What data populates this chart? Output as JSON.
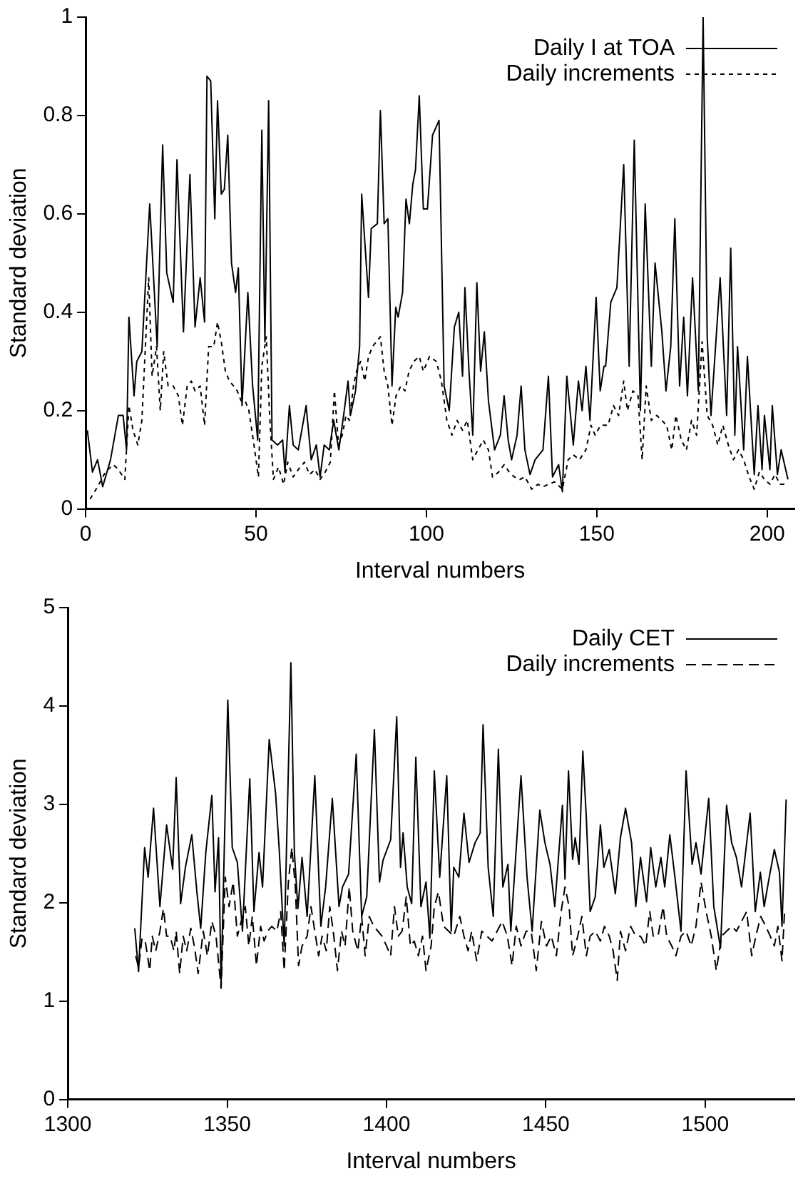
{
  "chart_data": [
    {
      "type": "line",
      "xlabel": "Interval numbers",
      "ylabel": "Standard deviation",
      "xlim": [
        0,
        208
      ],
      "xticks": [
        0,
        50,
        100,
        150,
        200
      ],
      "ylim": [
        0,
        1
      ],
      "yticks": [
        0,
        0.2,
        0.4,
        0.6,
        0.8,
        1
      ],
      "legend": "top right",
      "marker": "none",
      "series": [
        {
          "name": "Daily I at TOA",
          "color": "#000000",
          "line_style": "solid",
          "x": [
            0.5,
            2,
            3.5,
            5,
            7.3,
            9.6,
            11,
            12,
            12.7,
            14.2,
            15,
            16.5,
            18.8,
            21,
            22.6,
            23.8,
            25.7,
            26.8,
            28.7,
            30.6,
            32.1,
            33.6,
            34.9,
            35.6,
            36.7,
            37.9,
            38.7,
            39.8,
            40.7,
            41.7,
            42.8,
            44,
            44.8,
            45.9,
            47.6,
            49,
            50.5,
            51.7,
            52.6,
            53.7,
            54.7,
            56.3,
            57.8,
            58.5,
            59.8,
            60.9,
            62.4,
            64.7,
            66.2,
            67.7,
            68.8,
            70,
            71.5,
            72.8,
            74.3,
            75.7,
            77,
            77.7,
            79.2,
            80.4,
            81,
            83,
            83.8,
            85.6,
            86.5,
            87.6,
            88.7,
            89.9,
            91,
            91.7,
            93,
            94,
            95,
            96,
            96.8,
            97.9,
            99.1,
            100.3,
            101.8,
            103.7,
            105.2,
            106.7,
            108.2,
            109.5,
            110.6,
            111.3,
            112.5,
            113.6,
            114.8,
            115.9,
            117,
            118.2,
            120,
            121.7,
            122.8,
            124,
            125,
            126.6,
            127.8,
            128.9,
            130.4,
            131.9,
            134.2,
            135.8,
            137,
            138.8,
            139.9,
            141.2,
            143.1,
            144.6,
            145.7,
            146.8,
            148,
            149.8,
            151,
            152.1,
            152.6,
            154.1,
            155.9,
            157.9,
            159.5,
            161,
            162.8,
            164.2,
            166,
            167.1,
            169.1,
            170.3,
            171.7,
            172.9,
            174.3,
            175.5,
            176.6,
            178.1,
            179.8,
            181.2,
            182.4,
            183.5,
            186.2,
            188.1,
            189.3,
            190.5,
            191.3,
            193.1,
            194.2,
            196.2,
            197.3,
            198.5,
            199.2,
            200.8,
            201.5,
            203,
            204.1,
            206.1
          ],
          "values": [
            0.16,
            0.075,
            0.1,
            0.045,
            0.1,
            0.19,
            0.19,
            0.12,
            0.39,
            0.23,
            0.3,
            0.32,
            0.62,
            0.33,
            0.74,
            0.48,
            0.42,
            0.71,
            0.36,
            0.68,
            0.37,
            0.47,
            0.38,
            0.88,
            0.87,
            0.59,
            0.83,
            0.64,
            0.65,
            0.76,
            0.5,
            0.44,
            0.49,
            0.21,
            0.44,
            0.25,
            0.14,
            0.77,
            0.34,
            0.83,
            0.14,
            0.13,
            0.14,
            0.075,
            0.21,
            0.13,
            0.12,
            0.21,
            0.1,
            0.13,
            0.065,
            0.13,
            0.12,
            0.18,
            0.12,
            0.19,
            0.26,
            0.19,
            0.24,
            0.33,
            0.64,
            0.43,
            0.57,
            0.58,
            0.81,
            0.58,
            0.59,
            0.25,
            0.41,
            0.39,
            0.44,
            0.63,
            0.58,
            0.66,
            0.69,
            0.84,
            0.61,
            0.61,
            0.76,
            0.79,
            0.25,
            0.2,
            0.37,
            0.4,
            0.27,
            0.45,
            0.28,
            0.15,
            0.46,
            0.28,
            0.36,
            0.22,
            0.12,
            0.15,
            0.23,
            0.14,
            0.1,
            0.15,
            0.25,
            0.12,
            0.07,
            0.1,
            0.12,
            0.27,
            0.065,
            0.09,
            0.035,
            0.27,
            0.13,
            0.26,
            0.2,
            0.29,
            0.18,
            0.43,
            0.24,
            0.29,
            0.29,
            0.42,
            0.45,
            0.7,
            0.29,
            0.75,
            0.2,
            0.62,
            0.29,
            0.5,
            0.36,
            0.24,
            0.33,
            0.59,
            0.25,
            0.39,
            0.23,
            0.47,
            0.24,
            1.0,
            0.35,
            0.19,
            0.47,
            0.19,
            0.53,
            0.15,
            0.33,
            0.12,
            0.31,
            0.07,
            0.21,
            0.08,
            0.19,
            0.08,
            0.21,
            0.07,
            0.12,
            0.06
          ]
        },
        {
          "name": "Daily increments",
          "color": "#000000",
          "line_style": "dotted",
          "x": [
            1.3,
            3.5,
            5.8,
            8.1,
            9.6,
            11.5,
            12.7,
            13.9,
            15.3,
            16.5,
            18.5,
            19.5,
            20.8,
            21.9,
            22.9,
            24.2,
            25.7,
            27.2,
            28.4,
            29.8,
            31,
            32.1,
            33.6,
            34.9,
            36.1,
            37.6,
            38.7,
            39.8,
            41,
            42.2,
            43.4,
            44.5,
            45.6,
            46.8,
            47.9,
            49.4,
            50.7,
            51.7,
            53,
            54,
            55.1,
            56.6,
            58.1,
            59.3,
            60.9,
            62.4,
            64.2,
            65.7,
            67.3,
            68.8,
            70.3,
            71.8,
            73,
            74.2,
            75.3,
            76.4,
            77.4,
            78.6,
            79.5,
            80.7,
            81.9,
            83,
            84.2,
            85.3,
            86.5,
            87.6,
            88.7,
            89.9,
            91.1,
            92.5,
            93.7,
            94.9,
            96.3,
            97.9,
            99.1,
            100.9,
            102.9,
            104.4,
            106,
            107.5,
            109,
            110.6,
            112,
            113.6,
            115.1,
            116.7,
            118.2,
            119.4,
            121.2,
            122.8,
            124.3,
            125.8,
            127.4,
            128.9,
            130.9,
            132.7,
            134.2,
            135.8,
            137.6,
            139.9,
            141.6,
            143.1,
            144.9,
            146.8,
            148.3,
            149.5,
            151.1,
            152.3,
            153.3,
            154.9,
            156.4,
            157.9,
            159,
            160.6,
            162.1,
            163.3,
            164.5,
            166,
            167.6,
            169.1,
            170.5,
            172,
            173.2,
            174.8,
            176.3,
            177.8,
            179.3,
            180.9,
            182.4,
            184,
            185.5,
            187,
            188.6,
            190.1,
            191.6,
            193.1,
            194.7,
            196.2,
            197.7,
            199.2,
            200.8,
            202.3,
            203.8,
            206.1
          ],
          "values": [
            0.02,
            0.045,
            0.075,
            0.09,
            0.08,
            0.06,
            0.21,
            0.16,
            0.13,
            0.18,
            0.47,
            0.27,
            0.33,
            0.2,
            0.32,
            0.25,
            0.25,
            0.23,
            0.17,
            0.25,
            0.26,
            0.24,
            0.25,
            0.17,
            0.33,
            0.33,
            0.38,
            0.34,
            0.28,
            0.26,
            0.25,
            0.24,
            0.22,
            0.22,
            0.2,
            0.13,
            0.065,
            0.29,
            0.35,
            0.19,
            0.06,
            0.085,
            0.05,
            0.095,
            0.065,
            0.08,
            0.095,
            0.07,
            0.08,
            0.06,
            0.075,
            0.095,
            0.24,
            0.13,
            0.15,
            0.19,
            0.18,
            0.25,
            0.28,
            0.3,
            0.26,
            0.31,
            0.33,
            0.34,
            0.35,
            0.28,
            0.25,
            0.17,
            0.23,
            0.25,
            0.24,
            0.28,
            0.3,
            0.31,
            0.28,
            0.31,
            0.3,
            0.26,
            0.18,
            0.15,
            0.18,
            0.16,
            0.18,
            0.1,
            0.12,
            0.14,
            0.12,
            0.065,
            0.075,
            0.09,
            0.075,
            0.065,
            0.06,
            0.065,
            0.04,
            0.05,
            0.045,
            0.05,
            0.055,
            0.04,
            0.1,
            0.11,
            0.1,
            0.12,
            0.17,
            0.15,
            0.17,
            0.17,
            0.17,
            0.21,
            0.19,
            0.26,
            0.2,
            0.24,
            0.23,
            0.1,
            0.25,
            0.18,
            0.19,
            0.18,
            0.17,
            0.12,
            0.19,
            0.14,
            0.12,
            0.18,
            0.15,
            0.34,
            0.19,
            0.17,
            0.13,
            0.17,
            0.13,
            0.1,
            0.12,
            0.1,
            0.065,
            0.04,
            0.075,
            0.06,
            0.05,
            0.07,
            0.05,
            0.05
          ]
        }
      ]
    },
    {
      "type": "line",
      "xlabel": "Interval numbers",
      "ylabel": "Standard deviation",
      "xlim": [
        1300,
        1528
      ],
      "xticks": [
        1300,
        1350,
        1400,
        1450,
        1500
      ],
      "ylim": [
        0,
        5
      ],
      "yticks": [
        0,
        1,
        2,
        3,
        4,
        5
      ],
      "legend": "top right",
      "marker": "none",
      "series": [
        {
          "name": "Daily CET",
          "color": "#000000",
          "line_style": "solid",
          "x": [
            1321,
            1322.2,
            1324.1,
            1325.2,
            1326.9,
            1328.9,
            1331,
            1332.9,
            1334,
            1335.4,
            1336.9,
            1338.9,
            1340.5,
            1341.7,
            1343.3,
            1345.2,
            1346.2,
            1347.3,
            1348.1,
            1350.2,
            1351.6,
            1353.2,
            1354.8,
            1357.1,
            1358.4,
            1360,
            1361.1,
            1363.2,
            1365.2,
            1366.3,
            1367.9,
            1370,
            1371.1,
            1372.2,
            1373.5,
            1375.1,
            1377.5,
            1379.4,
            1380.9,
            1383,
            1385.1,
            1386.2,
            1388.1,
            1390.5,
            1392.2,
            1393.8,
            1396.2,
            1397.8,
            1398.9,
            1401.3,
            1403.2,
            1404.4,
            1405.2,
            1406.5,
            1407.9,
            1409.2,
            1410.8,
            1412.4,
            1413.6,
            1415,
            1416.7,
            1418.9,
            1420.3,
            1421.1,
            1422.7,
            1424.3,
            1425.9,
            1427.8,
            1429.4,
            1430.3,
            1431.9,
            1433.5,
            1435.1,
            1436.5,
            1438.1,
            1439,
            1442.2,
            1444.1,
            1445.7,
            1448.1,
            1449.7,
            1451.3,
            1452.8,
            1455.2,
            1456,
            1457.1,
            1458.4,
            1459.2,
            1460.4,
            1461.6,
            1462.7,
            1463.9,
            1465.5,
            1467.1,
            1468.2,
            1469.9,
            1471.8,
            1473.4,
            1475,
            1476.9,
            1478.2,
            1479.7,
            1481.6,
            1482.9,
            1484.5,
            1486.1,
            1487.3,
            1488.9,
            1490.5,
            1492.4,
            1494,
            1495.9,
            1497.1,
            1498.7,
            1501.1,
            1502.7,
            1504.8,
            1506.7,
            1508.3,
            1509.8,
            1511.4,
            1514.1,
            1515.7,
            1517.3,
            1518.5,
            1520.1,
            1521.7,
            1523.3,
            1524.1,
            1525.4
          ],
          "values": [
            1.74,
            1.3,
            2.56,
            2.26,
            2.96,
            1.96,
            2.79,
            2.34,
            3.27,
            1.99,
            2.36,
            2.69,
            2.11,
            1.74,
            2.51,
            3.09,
            2.11,
            2.66,
            1.16,
            4.06,
            2.56,
            2.41,
            1.71,
            3.26,
            1.91,
            2.51,
            2.16,
            3.66,
            3.11,
            2.56,
            1.56,
            4.44,
            2.51,
            1.94,
            2.46,
            1.86,
            3.29,
            1.76,
            2.16,
            3.06,
            1.96,
            2.16,
            2.29,
            3.51,
            1.86,
            2.06,
            3.76,
            2.21,
            2.43,
            2.64,
            3.89,
            2.36,
            2.71,
            2.16,
            1.99,
            3.48,
            1.96,
            2.21,
            1.64,
            3.34,
            2.26,
            3.29,
            1.71,
            2.36,
            2.26,
            2.91,
            2.41,
            2.61,
            2.71,
            3.81,
            2.36,
            1.86,
            3.56,
            2.16,
            2.39,
            1.71,
            3.29,
            2.26,
            1.71,
            2.94,
            2.61,
            2.39,
            1.96,
            2.99,
            2.24,
            3.34,
            2.44,
            2.66,
            2.39,
            3.54,
            2.86,
            1.91,
            2.06,
            2.79,
            2.36,
            2.54,
            2.09,
            2.66,
            2.96,
            2.61,
            1.96,
            2.46,
            2.01,
            2.56,
            2.16,
            2.46,
            2.16,
            2.69,
            2.26,
            1.71,
            3.34,
            2.39,
            2.61,
            2.29,
            3.06,
            1.96,
            1.54,
            2.99,
            2.61,
            2.46,
            2.16,
            2.91,
            1.91,
            2.31,
            1.96,
            2.26,
            2.54,
            2.31,
            1.76,
            3.05
          ]
        },
        {
          "name": "Daily increments",
          "color": "#000000",
          "line_style": "dashed",
          "x": [
            1321.3,
            1322.2,
            1323.3,
            1324.4,
            1325.7,
            1326.5,
            1327.6,
            1328.9,
            1330,
            1331,
            1332.1,
            1333.3,
            1334,
            1335.1,
            1336.2,
            1337.3,
            1338.6,
            1339.8,
            1340.9,
            1342.5,
            1343.8,
            1345.2,
            1346.5,
            1348.1,
            1349.4,
            1350.6,
            1351.9,
            1353.2,
            1354.4,
            1355.7,
            1356.8,
            1357.9,
            1359.2,
            1360.5,
            1361.6,
            1362.7,
            1364,
            1365.6,
            1366.8,
            1367.9,
            1369.2,
            1370.3,
            1371.4,
            1372.4,
            1373.5,
            1375.1,
            1376.3,
            1377.5,
            1378.7,
            1379.8,
            1381.1,
            1382.2,
            1383.3,
            1384.6,
            1385.9,
            1387,
            1388.3,
            1389.4,
            1391,
            1392.2,
            1393.3,
            1394.6,
            1396,
            1397.3,
            1398.6,
            1400,
            1401.3,
            1402.5,
            1403.7,
            1404.9,
            1406.2,
            1407.5,
            1408.7,
            1410,
            1411.3,
            1412.4,
            1414,
            1415,
            1416.3,
            1417.9,
            1419.5,
            1421.1,
            1423,
            1424.3,
            1425.6,
            1426.7,
            1428.3,
            1429.9,
            1431.5,
            1433.1,
            1434.7,
            1436.3,
            1437.9,
            1439.4,
            1440.7,
            1442.2,
            1443.8,
            1445.4,
            1447,
            1448.6,
            1450.2,
            1451.7,
            1453.3,
            1454.8,
            1456,
            1457.3,
            1458.4,
            1460,
            1461.3,
            1462.7,
            1463.9,
            1465.5,
            1467.1,
            1468.4,
            1469.9,
            1471.1,
            1472.4,
            1473.4,
            1475,
            1476.6,
            1478.2,
            1479.7,
            1481.3,
            1482.6,
            1483.7,
            1485.2,
            1486.8,
            1487.9,
            1489.5,
            1490.8,
            1492.4,
            1494,
            1495.6,
            1497.1,
            1498.7,
            1500.3,
            1501.9,
            1503.5,
            1505.1,
            1506.7,
            1508.3,
            1509.8,
            1511.4,
            1513,
            1514.6,
            1515.9,
            1517.4,
            1519,
            1520.4,
            1521.7,
            1522.8,
            1524.1,
            1524.9
          ],
          "values": [
            1.46,
            1.34,
            1.64,
            1.59,
            1.31,
            1.66,
            1.51,
            1.71,
            1.94,
            1.66,
            1.66,
            1.51,
            1.71,
            1.28,
            1.66,
            1.51,
            1.74,
            1.54,
            1.28,
            1.71,
            1.46,
            1.81,
            1.66,
            1.13,
            2.26,
            1.96,
            2.21,
            1.66,
            1.81,
            1.96,
            1.56,
            1.86,
            1.36,
            1.76,
            1.61,
            1.71,
            1.76,
            1.71,
            1.91,
            1.31,
            2.21,
            2.56,
            2.16,
            1.36,
            1.56,
            1.66,
            1.96,
            1.71,
            1.46,
            1.66,
            1.51,
            1.96,
            1.71,
            1.31,
            1.71,
            1.56,
            2.16,
            1.71,
            1.51,
            1.86,
            1.46,
            1.86,
            1.76,
            1.71,
            1.66,
            1.56,
            1.46,
            1.96,
            1.66,
            1.71,
            2.06,
            1.56,
            1.61,
            1.46,
            1.66,
            1.31,
            1.56,
            1.96,
            2.11,
            1.76,
            1.71,
            1.66,
            1.86,
            1.66,
            1.51,
            1.71,
            1.41,
            1.71,
            1.66,
            1.61,
            1.71,
            1.81,
            1.66,
            1.36,
            1.76,
            1.56,
            1.71,
            1.71,
            1.31,
            1.81,
            1.56,
            1.66,
            1.46,
            1.91,
            2.16,
            1.96,
            1.46,
            1.66,
            1.86,
            1.46,
            1.66,
            1.71,
            1.61,
            1.76,
            1.66,
            1.51,
            1.21,
            1.71,
            1.51,
            1.76,
            1.66,
            1.66,
            1.56,
            1.91,
            1.66,
            1.66,
            1.96,
            1.66,
            1.56,
            1.46,
            1.66,
            1.71,
            1.56,
            1.76,
            2.21,
            1.91,
            1.66,
            1.31,
            1.66,
            1.71,
            1.76,
            1.71,
            1.81,
            1.91,
            1.46,
            1.66,
            1.86,
            1.76,
            1.66,
            1.56,
            1.76,
            1.41,
            1.91
          ]
        }
      ]
    }
  ]
}
